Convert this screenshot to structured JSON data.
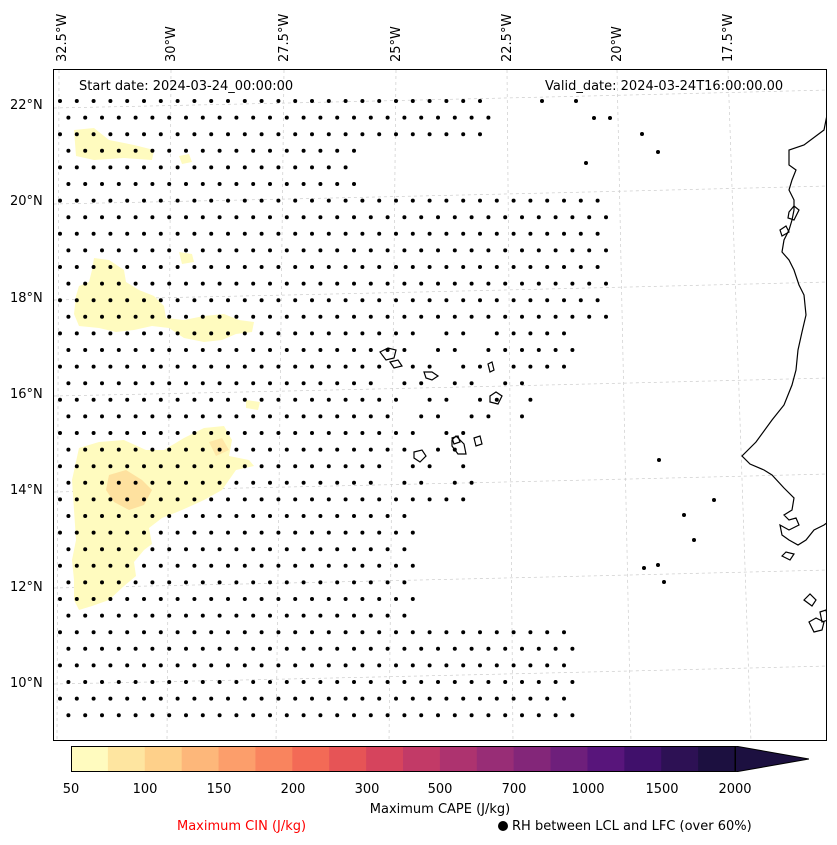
{
  "map": {
    "lon_labels": [
      "32.5°W",
      "30°W",
      "27.5°W",
      "25°W",
      "22.5°W",
      "20°W",
      "17.5°W"
    ],
    "lat_labels": [
      "22°N",
      "20°N",
      "18°N",
      "16°N",
      "14°N",
      "12°N",
      "10°N"
    ],
    "start_date": "Start date: 2024-03-24_00:00:00",
    "valid_date": "Valid_date: 2024-03-24T16:00:00.00",
    "grid_style": "dashed light grey",
    "coastline_color": "#000000",
    "dot_color": "#000000"
  },
  "colorbar": {
    "tick_labels": [
      "50",
      "100",
      "150",
      "200",
      "300",
      "500",
      "700",
      "1000",
      "1500",
      "2000"
    ],
    "label": "Maximum CAPE (J/kg)",
    "extend": "max",
    "colors": [
      "#fffbbf",
      "#fee5a0",
      "#fed08a",
      "#fdb77a",
      "#fc9e6b",
      "#f9845e",
      "#f36a56",
      "#e65456",
      "#d6445d",
      "#c23a67",
      "#ad336f",
      "#982d76",
      "#832679",
      "#6e1f7b",
      "#58157b",
      "#40106b",
      "#2d1154",
      "#1c1040",
      "#0d0a26"
    ]
  },
  "legend": {
    "cin_label": "Maximum CIN (J/kg)",
    "cin_color": "#ff0000",
    "rh_label": "RH between LCL and LFC (over 60%)",
    "rh_marker": "black-dot"
  }
}
